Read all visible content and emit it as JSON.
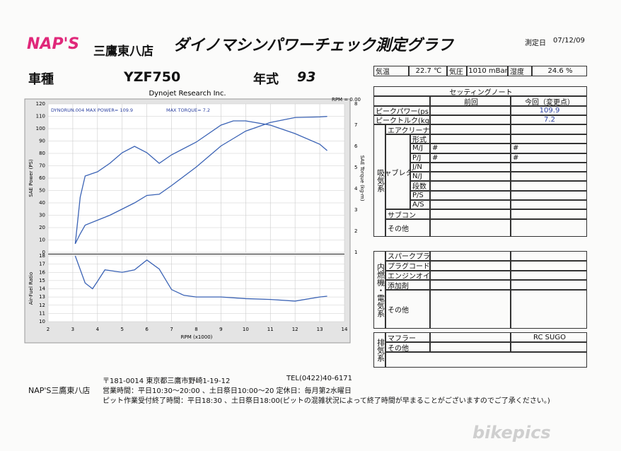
{
  "header": {
    "brand": "NAP'S",
    "shop": "三鷹東八店",
    "title": "ダイノマシンパワーチェック測定グラフ",
    "date_label": "測定日",
    "date": "07/12/09"
  },
  "vehicle": {
    "model_label": "車種",
    "model": "YZF750",
    "year_label": "年式",
    "year": "93"
  },
  "conditions": [
    "気温",
    "22.7 ℃",
    "気圧",
    "1010 mBar",
    "湿度",
    "24.6 %"
  ],
  "settings": {
    "title": "セッティングノート",
    "columns": [
      "前回",
      "今回（変更点）"
    ],
    "peak": [
      {
        "label": "ピークパワー(ps)",
        "current": "109.9"
      },
      {
        "label": "ピークトルク(kg-m)",
        "current": "7.2"
      }
    ],
    "intake": {
      "label": "吸気系",
      "air": "エアクリーナー",
      "carb_label": "キャブレター",
      "carb_rows": [
        {
          "label": "形式"
        },
        {
          "label": "M/J",
          "prev": "#",
          "current": "#"
        },
        {
          "label": "P/J",
          "prev": "#",
          "current": "#"
        },
        {
          "label": "J/N"
        },
        {
          "label": "N/J"
        },
        {
          "label": "段数"
        },
        {
          "label": "P/S"
        },
        {
          "label": "A/S"
        }
      ],
      "subcon": "サブコン",
      "other": "その他"
    },
    "engine": {
      "label": "内燃機・電気系",
      "rows": [
        "スパークプラグ",
        "プラグコード",
        "エンジンオイル",
        "添加剤",
        "その他"
      ]
    },
    "exhaust": {
      "label": "排気系",
      "rows": [
        {
          "label": "マフラー",
          "current": "RC SUGO"
        },
        {
          "label": "その他"
        }
      ]
    }
  },
  "footer": {
    "address": "〒181-0014  東京都三鷹市野崎1-19-12",
    "tel": "TEL(0422)40-6171",
    "shop": "NAP'S三鷹東八店",
    "hours": "営業時間：平日10:30～20:00 、土日祭日10:00～20 定休日：毎月第2水曜日",
    "pit": "ピット作業受付終了時間：平日18:30 、土日祭日18:00(ピットの混雑状況によって終了時間が早まることがございますのでご了承ください。)"
  },
  "watermark": "bikepics",
  "chart_data": [
    {
      "type": "line",
      "title": "Dynojet Research Inc.",
      "annotation": "RPM = 0.00",
      "subtitle": "DYNORUN.004  MAX POWER= 109.9",
      "subtitle2": "MAX TORQUE= 7.2",
      "ylabel": "SAE Power (PS)",
      "y2label": "SAE Torque (kg-m)",
      "x": [
        3.1,
        3.3,
        3.5,
        4,
        4.5,
        5,
        5.5,
        6,
        6.5,
        7,
        8,
        9,
        9.5,
        10,
        11,
        12,
        13,
        13.3
      ],
      "xlim": [
        2,
        14
      ],
      "ylim": [
        0,
        120
      ],
      "yticks": [
        0,
        10,
        20,
        30,
        40,
        50,
        60,
        70,
        80,
        90,
        100,
        110,
        120
      ],
      "y2lim": [
        1,
        8
      ],
      "y2ticks": [
        1,
        2,
        3,
        4,
        5,
        6,
        7,
        8
      ],
      "grid": true,
      "series": [
        {
          "name": "SAE Power",
          "color": "#3b63b5",
          "values": [
            7,
            15,
            22,
            26,
            30,
            35,
            40,
            46,
            47,
            54,
            69,
            86,
            92,
            98,
            105,
            109,
            109.5,
            109.9
          ]
        },
        {
          "name": "SAE Torque",
          "color": "#3b63b5",
          "axis": "y2",
          "values": [
            1.4,
            3.6,
            4.6,
            4.8,
            5.2,
            5.7,
            6.0,
            5.7,
            5.2,
            5.6,
            6.2,
            7.0,
            7.2,
            7.2,
            7.0,
            6.6,
            6.1,
            5.8
          ]
        }
      ]
    },
    {
      "type": "line",
      "ylabel": "Air-Fuel Ratio",
      "xlabel": "RPM (x1000)",
      "x": [
        3.1,
        3.5,
        3.8,
        4,
        4.3,
        5,
        5.5,
        6,
        6.5,
        7,
        7.5,
        8,
        9,
        10,
        11,
        12,
        13,
        13.3
      ],
      "xlim": [
        2,
        14
      ],
      "xticks": [
        2,
        3,
        4,
        5,
        6,
        7,
        8,
        9,
        10,
        11,
        12,
        13,
        14
      ],
      "ylim": [
        10,
        18
      ],
      "yticks": [
        10,
        11,
        12,
        13,
        14,
        15,
        16,
        17,
        18
      ],
      "grid": true,
      "series": [
        {
          "name": "Air-Fuel Ratio",
          "color": "#3b63b5",
          "values": [
            18,
            14.7,
            14,
            14.9,
            16.3,
            16,
            16.3,
            17.5,
            16.4,
            13.9,
            13.2,
            13,
            13,
            12.8,
            12.7,
            12.5,
            13,
            13.1
          ]
        }
      ]
    }
  ]
}
